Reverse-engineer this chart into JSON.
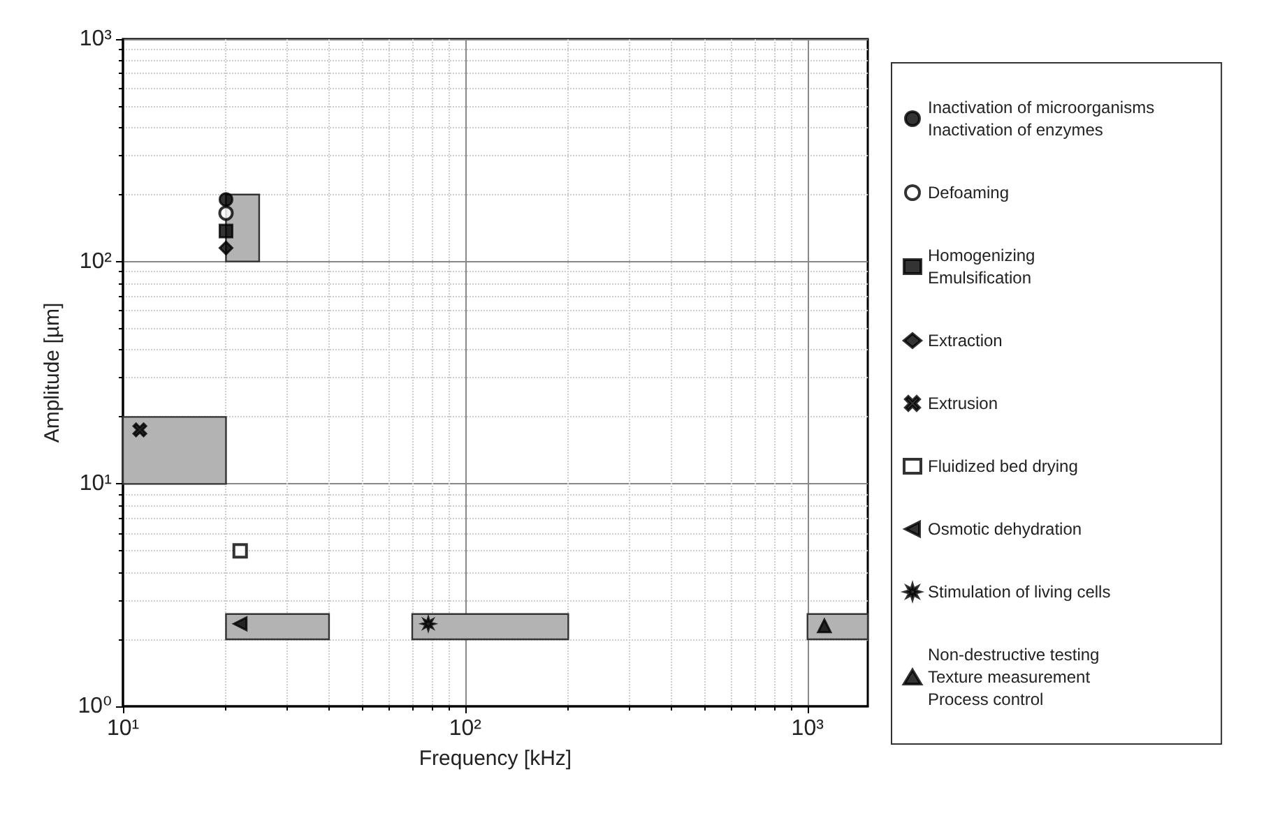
{
  "chart_data": {
    "type": "scatter",
    "xlabel": "Frequency [kHz]",
    "ylabel": "Amplitude [µm]",
    "log": "xy",
    "grid": true,
    "legend": "right",
    "xlim": [
      10,
      1500
    ],
    "xticks": [
      {
        "value": 10,
        "label": "10¹"
      },
      {
        "value": 100,
        "label": "10²"
      },
      {
        "value": 1000,
        "label": "10³"
      }
    ],
    "ylim": [
      1,
      1000
    ],
    "yticks": [
      {
        "value": 1,
        "label": "10⁰"
      },
      {
        "value": 10,
        "label": "10¹"
      },
      {
        "value": 100,
        "label": "10²"
      },
      {
        "value": 1000,
        "label": "10³"
      }
    ],
    "series": [
      {
        "type": "area",
        "color": "#b3b3b3",
        "x": [
          20,
          25,
          25,
          20,
          20
        ],
        "values": [
          100,
          100,
          200,
          200,
          100
        ]
      },
      {
        "type": "area",
        "color": "#b3b3b3",
        "x": [
          10,
          20,
          20,
          10,
          10
        ],
        "values": [
          10,
          10,
          20,
          20,
          10
        ]
      },
      {
        "type": "area",
        "color": "#b3b3b3",
        "x": [
          40,
          20,
          20,
          40,
          40
        ],
        "values": [
          2,
          2,
          2.6,
          2.6,
          2
        ]
      },
      {
        "type": "area",
        "color": "#b3b3b3",
        "x": [
          70,
          200,
          200,
          70,
          70
        ],
        "values": [
          2,
          2,
          2.6,
          2.6,
          2
        ]
      },
      {
        "type": "area",
        "color": "#b3b3b3",
        "x": [
          1000,
          1500,
          1500,
          1000,
          1000
        ],
        "values": [
          2,
          2,
          2.6,
          2.6,
          2
        ]
      },
      {
        "name": "Inactivation of microorganisms\nInactivation of enzymes",
        "color": "#000000",
        "marker": "circle",
        "x": [
          20
        ],
        "values": [
          190
        ]
      },
      {
        "name": "Defoaming",
        "color": "#000000",
        "marker": "circle-open",
        "x": [
          20
        ],
        "values": [
          165
        ]
      },
      {
        "name": "Homogenizing\nEmulsification",
        "color": "#000000",
        "marker": "square",
        "x": [
          20
        ],
        "values": [
          137
        ]
      },
      {
        "name": "Extraction",
        "color": "#000000",
        "marker": "diamond",
        "x": [
          20
        ],
        "values": [
          115
        ]
      },
      {
        "name": "Extrusion",
        "color": "#000000",
        "marker": "cross",
        "x": [
          11.2
        ],
        "values": [
          17.5
        ]
      },
      {
        "name": "Fluidized bed drying",
        "color": "#000000",
        "marker": "square-open",
        "x": [
          22
        ],
        "values": [
          5
        ]
      },
      {
        "name": "Osmotic dehydration",
        "color": "#000000",
        "marker": "triangle-left",
        "x": [
          22
        ],
        "values": [
          2.35
        ]
      },
      {
        "name": "Stimulation of living cells",
        "color": "#000000",
        "marker": "star",
        "x": [
          78
        ],
        "values": [
          2.35
        ]
      },
      {
        "name": "Non-destructive testing\nTexture measurement\nProcess control",
        "color": "#000000",
        "marker": "triangle",
        "x": [
          1120
        ],
        "values": [
          2.3
        ]
      }
    ]
  }
}
